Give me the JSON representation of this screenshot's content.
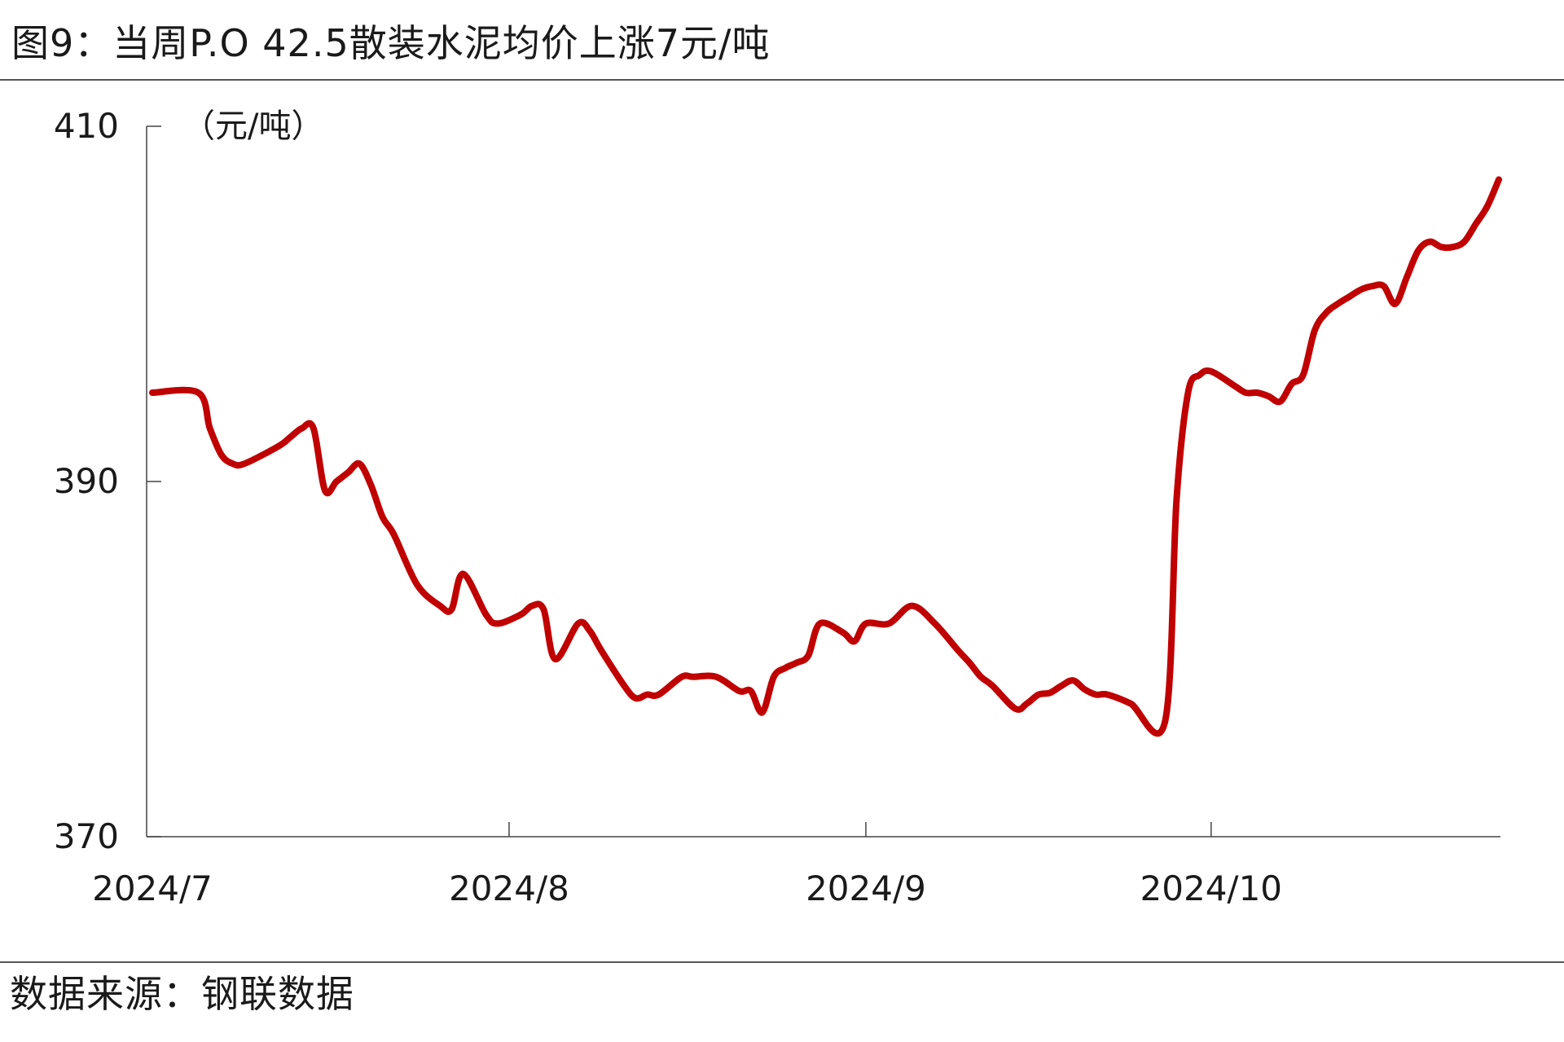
{
  "figure": {
    "title": "图9：当周P.O 42.5散装水泥均价上涨7元/吨",
    "source": "数据来源：钢联数据"
  },
  "chart_data": {
    "type": "line",
    "unit_label": "（元/吨）",
    "xlabel": "",
    "ylabel": "",
    "ylim": [
      370,
      410
    ],
    "yticks": [
      370,
      390,
      410
    ],
    "xlim": [
      "2024-07-01",
      "2024-10-26"
    ],
    "xticks": [
      {
        "date": "2024-07-01",
        "label": "2024/7"
      },
      {
        "date": "2024-08-01",
        "label": "2024/8"
      },
      {
        "date": "2024-09-01",
        "label": "2024/9"
      },
      {
        "date": "2024-10-01",
        "label": "2024/10"
      }
    ],
    "grid": false,
    "legend": "none",
    "line_color": "#c00000",
    "series": [
      {
        "x": [
          "2024-07-01",
          "2024-07-05",
          "2024-07-06",
          "2024-07-07",
          "2024-07-08",
          "2024-07-09",
          "2024-07-12",
          "2024-07-13",
          "2024-07-14",
          "2024-07-15",
          "2024-07-16",
          "2024-07-17",
          "2024-07-18",
          "2024-07-19",
          "2024-07-20",
          "2024-07-21",
          "2024-07-22",
          "2024-07-24",
          "2024-07-26",
          "2024-07-27",
          "2024-07-28",
          "2024-07-30",
          "2024-07-31",
          "2024-08-02",
          "2024-08-03",
          "2024-08-04",
          "2024-08-05",
          "2024-08-07",
          "2024-08-08",
          "2024-08-09",
          "2024-08-11",
          "2024-08-12",
          "2024-08-13",
          "2024-08-14",
          "2024-08-16",
          "2024-08-17",
          "2024-08-19",
          "2024-08-21",
          "2024-08-22",
          "2024-08-23",
          "2024-08-24",
          "2024-08-25",
          "2024-08-26",
          "2024-08-27",
          "2024-08-28",
          "2024-08-30",
          "2024-08-31",
          "2024-09-01",
          "2024-09-03",
          "2024-09-05",
          "2024-09-07",
          "2024-09-09",
          "2024-09-10",
          "2024-09-11",
          "2024-09-12",
          "2024-09-14",
          "2024-09-15",
          "2024-09-16",
          "2024-09-17",
          "2024-09-18",
          "2024-09-19",
          "2024-09-20",
          "2024-09-21",
          "2024-09-22",
          "2024-09-24",
          "2024-09-27",
          "2024-09-28",
          "2024-09-29",
          "2024-09-30",
          "2024-10-01",
          "2024-10-03",
          "2024-10-04",
          "2024-10-05",
          "2024-10-06",
          "2024-10-07",
          "2024-10-08",
          "2024-10-09",
          "2024-10-10",
          "2024-10-11",
          "2024-10-12",
          "2024-10-13",
          "2024-10-14",
          "2024-10-15",
          "2024-10-16",
          "2024-10-17",
          "2024-10-18",
          "2024-10-19",
          "2024-10-20",
          "2024-10-21",
          "2024-10-22",
          "2024-10-23",
          "2024-10-24",
          "2024-10-25",
          "2024-10-26"
        ],
        "values": [
          395,
          395,
          393,
          391.5,
          391,
          391,
          392,
          392.5,
          393,
          393,
          389.5,
          390,
          390.5,
          391,
          389.8,
          388,
          387,
          384.2,
          383,
          382.8,
          384.8,
          382.5,
          382,
          382.5,
          383,
          382.8,
          380,
          382,
          381.6,
          380.5,
          378.5,
          377.8,
          378,
          378,
          379,
          379,
          379,
          378.2,
          378.2,
          377,
          379,
          379.5,
          379.8,
          380.2,
          382,
          381.5,
          381,
          382,
          382,
          383,
          382,
          380.5,
          379.8,
          379,
          378.5,
          377.2,
          377.5,
          378,
          378.1,
          378.5,
          378.8,
          378.3,
          378,
          378,
          377.5,
          376.5,
          389,
          395,
          396,
          396.2,
          395.4,
          395,
          395,
          394.8,
          394.5,
          395.5,
          396,
          398.5,
          399.5,
          400,
          400.4,
          400.8,
          401,
          401,
          400,
          401.5,
          403,
          403.5,
          403.2,
          403.2,
          403.5,
          404.5,
          405.5,
          407
        ]
      }
    ]
  }
}
